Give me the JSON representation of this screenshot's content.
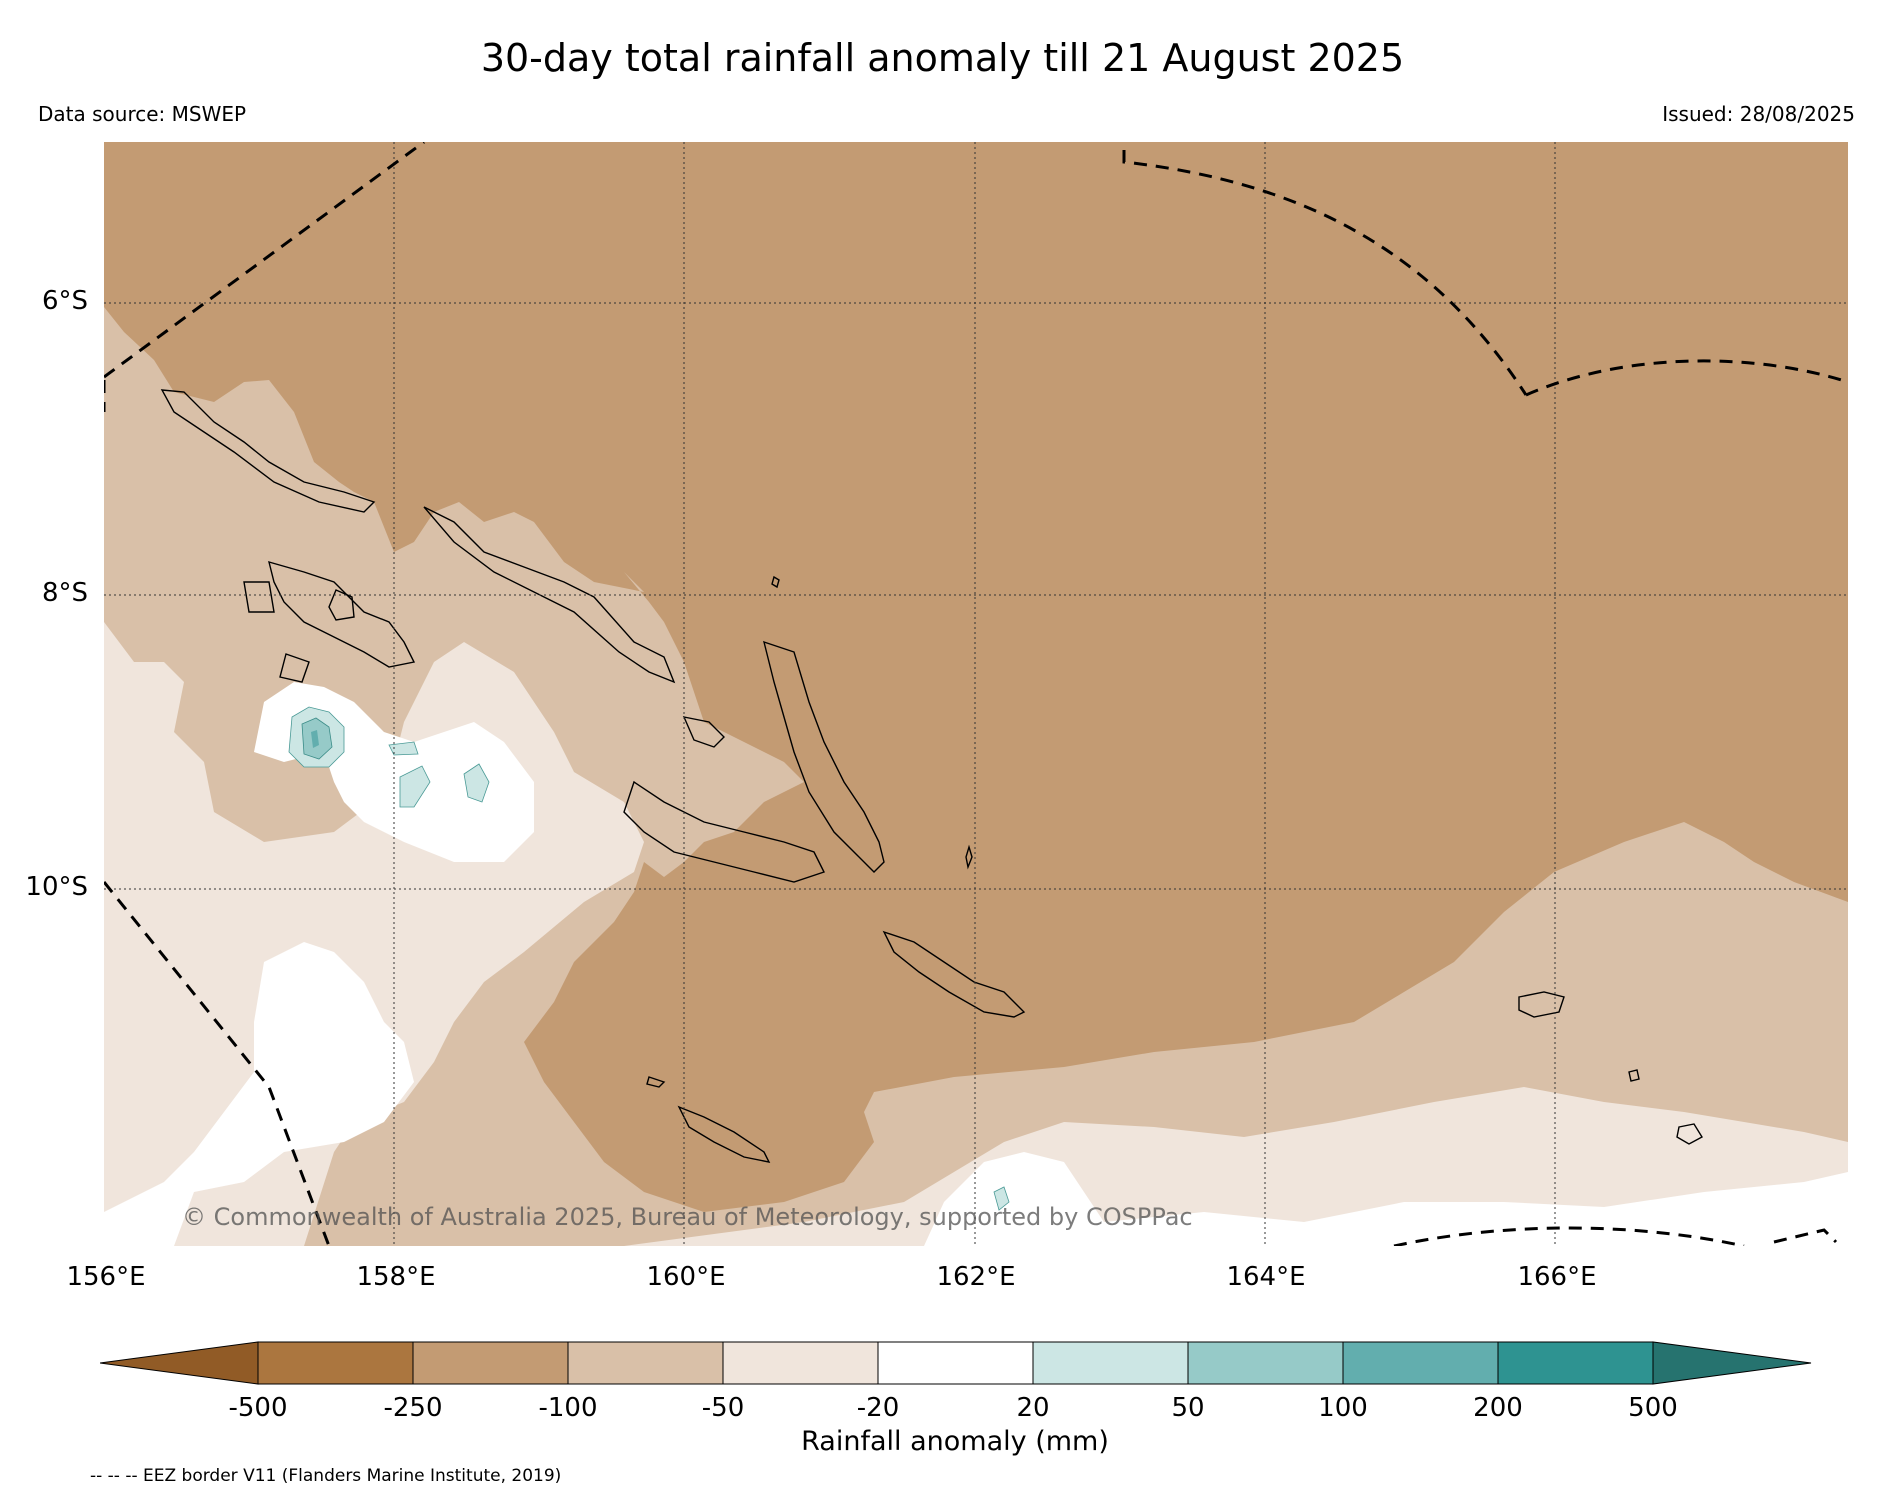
{
  "header": {
    "title": "30-day total rainfall anomaly till 21 August 2025",
    "data_source": "Data source: MSWEP",
    "issued": "Issued: 28/08/2025"
  },
  "map": {
    "lat_labels": [
      "6°S",
      "8°S",
      "10°S"
    ],
    "lon_labels": [
      "156°E",
      "158°E",
      "160°E",
      "162°E",
      "164°E",
      "166°E"
    ],
    "copyright": "© Commonwealth of Australia 2025, Bureau of Meteorology, supported by COSPPac",
    "colors": {
      "lt_-500": "#915b26",
      "-500_-250": "#ab763f",
      "-250_-100": "#c39b73",
      "-100_-50": "#d9c0a8",
      "-50_-20": "#f0e5dc",
      "-20_20": "#ffffff",
      "20_50": "#cce6e4",
      "50_100": "#96cac8",
      "100_200": "#62aeae",
      "200_500": "#2e9391",
      "gt_500": "#26736f"
    }
  },
  "colorbar": {
    "label": "Rainfall anomaly (mm)",
    "ticks": [
      "-500",
      "-250",
      "-100",
      "-50",
      "-20",
      "20",
      "50",
      "100",
      "200",
      "500"
    ],
    "colors": [
      "#915b26",
      "#ab763f",
      "#c39b73",
      "#d9c0a8",
      "#f0e5dc",
      "#ffffff",
      "#cce6e4",
      "#96cac8",
      "#62aeae",
      "#2e9391",
      "#26736f"
    ]
  },
  "footer": {
    "eez_note": "-- -- -- EEZ border V11 (Flanders Marine Institute, 2019)"
  }
}
